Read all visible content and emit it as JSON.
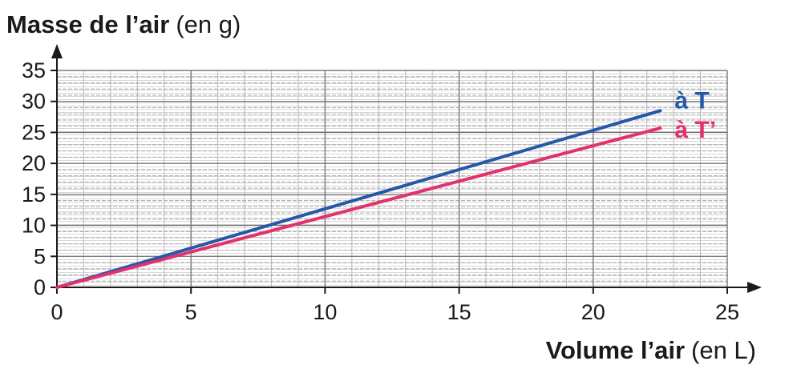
{
  "chart_data": {
    "type": "line",
    "ylabel": "Masse de l’air",
    "ylabel_unit": "(en g)",
    "xlabel": "Volume l’air",
    "xlabel_unit": "(en L)",
    "xlim": [
      0,
      25
    ],
    "ylim": [
      0,
      35
    ],
    "x_ticks": [
      0,
      5,
      10,
      15,
      20,
      25
    ],
    "y_ticks": [
      0,
      5,
      10,
      15,
      20,
      25,
      30,
      35
    ],
    "x_minor_step": 1,
    "y_minor_step": 1,
    "grid": true,
    "series": [
      {
        "name": "à T",
        "color": "#2458a8",
        "x": [
          0,
          22.5
        ],
        "y": [
          0,
          28.5
        ]
      },
      {
        "name": "à T’",
        "color": "#e3306e",
        "x": [
          0,
          22.5
        ],
        "y": [
          0,
          25.7
        ]
      }
    ]
  }
}
